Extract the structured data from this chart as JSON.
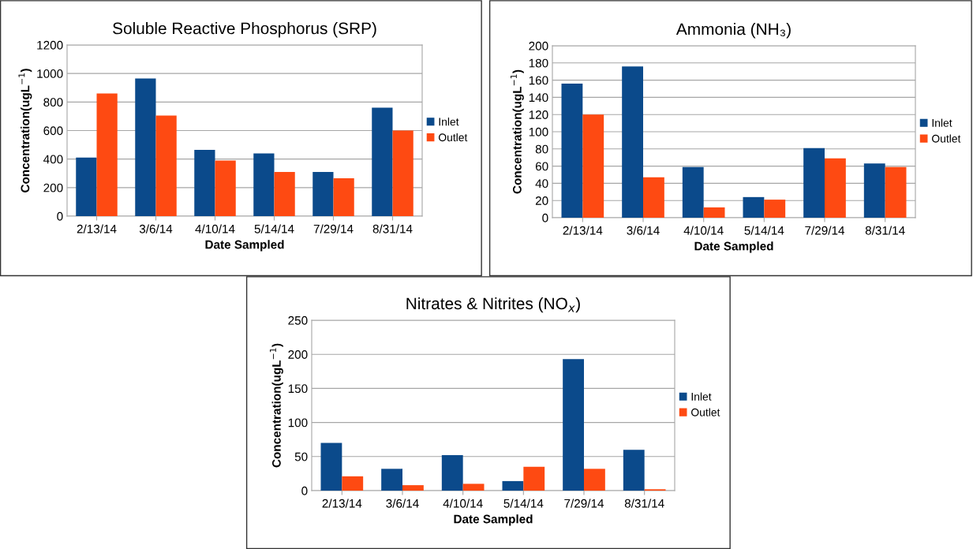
{
  "chart_data": [
    {
      "type": "bar",
      "title": "Soluble Reactive Phosphorus (SRP)",
      "xlabel": "Date Sampled",
      "ylabel": "Concentration(ugL$^{−1}$)",
      "categories": [
        "2/13/14",
        "3/6/14",
        "4/10/14",
        "5/14/14",
        "7/29/14",
        "8/31/14"
      ],
      "series": [
        {
          "name": "Inlet",
          "color": "#0b4a8b",
          "values": [
            410,
            965,
            465,
            440,
            310,
            760
          ]
        },
        {
          "name": "Outlet",
          "color": "#fe4a12",
          "values": [
            860,
            705,
            390,
            310,
            265,
            600
          ]
        }
      ],
      "ylim": [
        0,
        1200
      ],
      "yticks": [
        0,
        200,
        400,
        600,
        800,
        1000,
        1200
      ],
      "grid": "y",
      "legend": "right"
    },
    {
      "type": "bar",
      "title": "Ammonia (NH₃)",
      "xlabel": "Date Sampled",
      "ylabel": "Concentration(ugL$^{−1}$)",
      "categories": [
        "2/13/14",
        "3/6/14",
        "4/10/14",
        "5/14/14",
        "7/29/14",
        "8/31/14"
      ],
      "series": [
        {
          "name": "Inlet",
          "color": "#0b4a8b",
          "values": [
            156,
            176,
            59,
            24,
            81,
            63
          ]
        },
        {
          "name": "Outlet",
          "color": "#fe4a12",
          "values": [
            120,
            47,
            12,
            21,
            69,
            59
          ]
        }
      ],
      "ylim": [
        0,
        200
      ],
      "yticks": [
        0,
        20,
        40,
        60,
        80,
        100,
        120,
        140,
        160,
        180,
        200
      ],
      "grid": "y",
      "legend": "right"
    },
    {
      "type": "bar",
      "title": "Nitrates & Nitrites (NO$_{x}$)",
      "xlabel": "Date Sampled",
      "ylabel": "Concentration(ugL$^{−1}$)",
      "categories": [
        "2/13/14",
        "3/6/14",
        "4/10/14",
        "5/14/14",
        "7/29/14",
        "8/31/14"
      ],
      "series": [
        {
          "name": "Inlet",
          "color": "#0b4a8b",
          "values": [
            70,
            32,
            52,
            14,
            193,
            60
          ]
        },
        {
          "name": "Outlet",
          "color": "#fe4a12",
          "values": [
            21,
            8,
            10,
            35,
            32,
            2
          ]
        }
      ],
      "ylim": [
        0,
        250
      ],
      "yticks": [
        0,
        50,
        100,
        150,
        200,
        250
      ],
      "grid": "y",
      "legend": "right"
    }
  ]
}
